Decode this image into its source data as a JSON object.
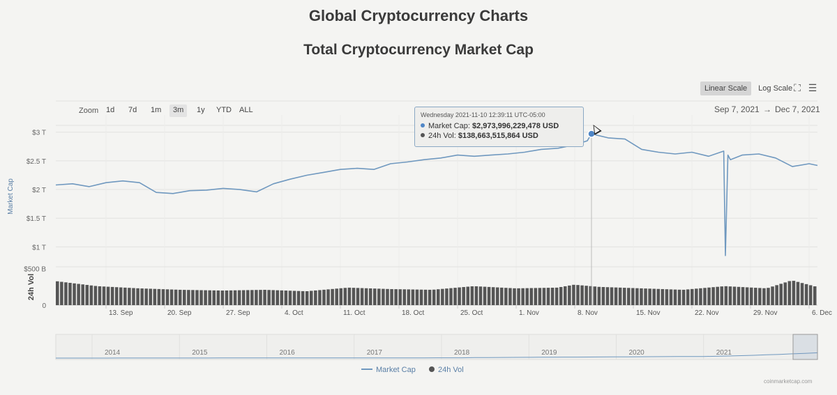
{
  "page": {
    "heading": "Global Cryptocurrency Charts"
  },
  "chart": {
    "title": "Total Cryptocurrency Market Cap",
    "scale_buttons": [
      {
        "label": "Linear Scale",
        "active": true
      },
      {
        "label": "Log Scale",
        "active": false
      }
    ],
    "icons": {
      "fullscreen": "fullscreen-icon",
      "menu": "hamburger-menu-icon"
    },
    "zoom_label": "Zoom",
    "zoom_buttons": [
      "1d",
      "7d",
      "1m",
      "3m",
      "1y",
      "YTD",
      "ALL"
    ],
    "zoom_active": "3m",
    "range_from": "Sep 7, 2021",
    "range_sep": "→",
    "range_to": "Dec 7, 2021",
    "tooltip": {
      "date": "Wednesday 2021-11-10 12:39:11 UTC-05:00",
      "market_cap_label": "Market Cap:",
      "market_cap_value": "$2,973,996,229,478 USD",
      "vol_label": "24h Vol:",
      "vol_value": "$138,663,515,864 USD"
    },
    "legend": {
      "market_cap": "Market Cap",
      "vol": "24h Vol"
    },
    "credits": "coinmarketcap.com",
    "navigator_years": [
      "2014",
      "2015",
      "2016",
      "2017",
      "2018",
      "2019",
      "2020",
      "2021"
    ]
  },
  "colors": {
    "line": "#6f98bf",
    "bars": "#555555",
    "marker": "#4f86c6",
    "tooltip_border": "#8aa8c4"
  },
  "chart_data": {
    "type": "line",
    "title": "Total Cryptocurrency Market Cap",
    "y_axis": {
      "label": "Market Cap",
      "ticks": [
        "$1 T",
        "$1.5 T",
        "$2 T",
        "$2.5 T",
        "$3 T"
      ],
      "tick_values": [
        1,
        1.5,
        2,
        2.5,
        3
      ],
      "unit": "trillion USD",
      "ylim": [
        0.75,
        3.3
      ]
    },
    "vol_axis": {
      "label": "24h Vol",
      "ticks": [
        "0",
        "$500 B"
      ],
      "tick_values": [
        0,
        500
      ],
      "unit": "billion USD"
    },
    "x_ticks": [
      "13. Sep",
      "20. Sep",
      "27. Sep",
      "4. Oct",
      "11. Oct",
      "18. Oct",
      "25. Oct",
      "1. Nov",
      "8. Nov",
      "15. Nov",
      "22. Nov",
      "29. Nov",
      "6. Dec"
    ],
    "x_tick_days": [
      6,
      13,
      20,
      27,
      34,
      41,
      48,
      55,
      62,
      69,
      76,
      83,
      90
    ],
    "x_range_days": [
      0,
      91
    ],
    "series": [
      {
        "name": "Market Cap",
        "x": [
          0,
          2,
          4,
          6,
          8,
          10,
          12,
          14,
          16,
          18,
          20,
          22,
          24,
          26,
          28,
          30,
          32,
          34,
          36,
          38,
          40,
          42,
          44,
          46,
          48,
          50,
          52,
          54,
          56,
          58,
          60,
          62,
          63.5,
          64,
          66,
          68,
          70,
          72,
          74,
          76,
          78,
          79.8,
          80,
          80.3,
          80.6,
          82,
          84,
          86,
          88,
          90,
          91
        ],
        "y": [
          2.08,
          2.1,
          2.05,
          2.12,
          2.15,
          2.12,
          1.95,
          1.93,
          1.98,
          1.99,
          2.02,
          2.0,
          1.96,
          2.1,
          2.18,
          2.25,
          2.3,
          2.35,
          2.37,
          2.35,
          2.45,
          2.48,
          2.52,
          2.55,
          2.6,
          2.58,
          2.6,
          2.62,
          2.65,
          2.7,
          2.72,
          2.78,
          2.85,
          2.97,
          2.9,
          2.88,
          2.7,
          2.65,
          2.62,
          2.65,
          2.58,
          2.67,
          0.85,
          2.6,
          2.52,
          2.6,
          2.62,
          2.55,
          2.4,
          2.45,
          2.42
        ]
      },
      {
        "name": "24h Vol",
        "x": [
          0,
          5,
          10,
          15,
          20,
          25,
          30,
          35,
          40,
          45,
          50,
          55,
          60,
          62,
          65,
          70,
          75,
          80,
          85,
          88,
          91
        ],
        "y": [
          330,
          260,
          230,
          210,
          200,
          210,
          190,
          240,
          220,
          210,
          260,
          230,
          240,
          280,
          250,
          230,
          210,
          260,
          230,
          340,
          250
        ]
      }
    ],
    "highlighted_point": {
      "series": "Market Cap",
      "x": 64
    },
    "grid": true,
    "legend_position": "bottom-center"
  }
}
